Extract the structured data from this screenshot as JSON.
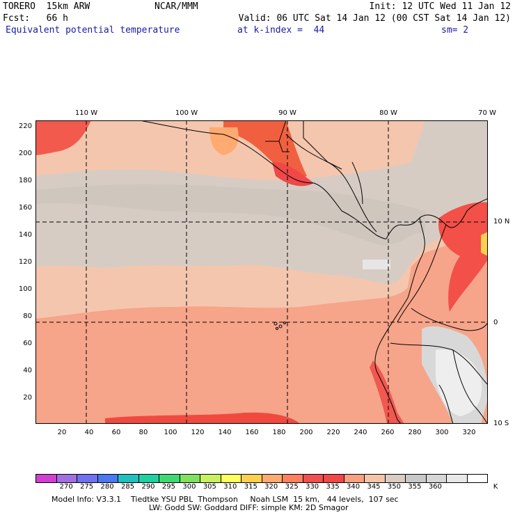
{
  "header": {
    "model": "TORERO  15km ARW",
    "org": "NCAR/MMM",
    "init": "Init: 12 UTC Wed 11 Jan 12",
    "fcst": "Fcst:   66 h",
    "valid": "Valid: 06 UTC Sat 14 Jan 12 (00 CST Sat 14 Jan 12)",
    "field": "Equivalent potential temperature",
    "level": "at k-index =  44",
    "smooth": "sm= 2"
  },
  "map": {
    "lon_labels": [
      "110 W",
      "100 W",
      "90 W",
      "80 W",
      "70 W"
    ],
    "lat_labels": [
      "10 N",
      "0",
      "10 S"
    ],
    "y_ticks": [
      "220",
      "200",
      "180",
      "160",
      "140",
      "120",
      "100",
      "80",
      "60",
      "40",
      "20"
    ],
    "x_ticks": [
      "20",
      "40",
      "60",
      "80",
      "100",
      "120",
      "140",
      "160",
      "180",
      "200",
      "220",
      "240",
      "260",
      "280",
      "300",
      "320"
    ]
  },
  "colorbar": {
    "levels": [
      "270",
      "275",
      "280",
      "285",
      "290",
      "295",
      "300",
      "305",
      "310",
      "315",
      "320",
      "325",
      "330",
      "335",
      "340",
      "345",
      "350",
      "355",
      "360"
    ],
    "unit": "K",
    "colors": [
      "#d040d0",
      "#a070e0",
      "#7070f0",
      "#4a78f0",
      "#20c0c0",
      "#20d0a0",
      "#40d870",
      "#80e060",
      "#c8f060",
      "#ffff60",
      "#ffd050",
      "#ffaa70",
      "#ff8060",
      "#f05050",
      "#f04848",
      "#f8a080",
      "#f4c4a8",
      "#d8ccc4",
      "#c8c8c8",
      "#d6d6d6",
      "#e8e8e8",
      "#ffffff"
    ]
  },
  "footer": {
    "line1": "Model Info: V3.3.1    Tiedtke YSU PBL  Thompson     Noah LSM  15 km,   44 levels,  107 sec",
    "line2": "LW: Godd SW: Goddard DIFF: simple KM: 2D Smagor"
  }
}
